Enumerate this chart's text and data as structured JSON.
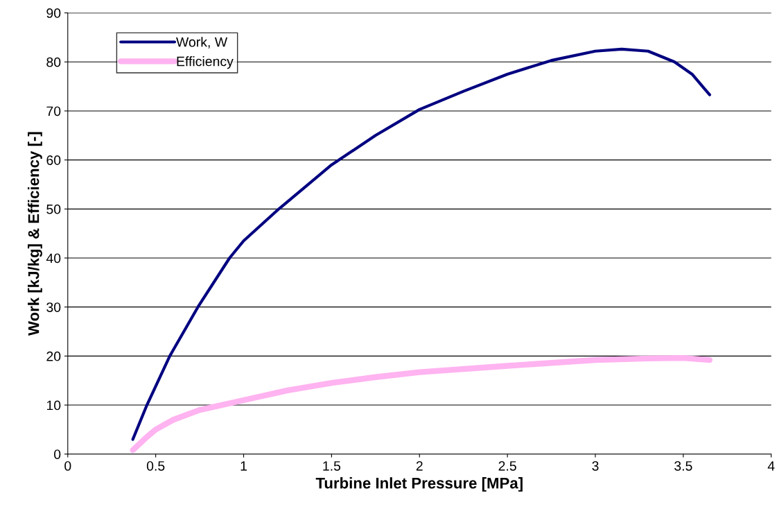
{
  "chart_data": {
    "type": "line",
    "xlabel": "Turbine Inlet Pressure [MPa]",
    "ylabel": "Work [kJ/kg] & Efficiency [-]",
    "xlim": [
      0,
      4
    ],
    "xticks": [
      0,
      0.5,
      1,
      1.5,
      2,
      2.5,
      3,
      3.5,
      4
    ],
    "ylim": [
      0,
      90
    ],
    "yticks": [
      0,
      10,
      20,
      30,
      40,
      50,
      60,
      70,
      80,
      90
    ],
    "grid": "y",
    "legend": "top left",
    "marker": "none",
    "line_style": "solid",
    "series": [
      {
        "name": "Work, W",
        "color": "#000080",
        "x": [
          0.37,
          0.45,
          0.58,
          0.74,
          0.92,
          1.0,
          1.2,
          1.5,
          1.75,
          2.0,
          2.25,
          2.5,
          2.75,
          3.0,
          3.15,
          3.3,
          3.45,
          3.55,
          3.65
        ],
        "values": [
          3,
          10,
          20,
          30,
          40,
          43.5,
          50,
          59,
          65,
          70.3,
          74,
          77.5,
          80.3,
          82.2,
          82.6,
          82.2,
          80,
          77.5,
          73.3
        ]
      },
      {
        "name": "Efficiency",
        "color": "#ffb3f0",
        "x": [
          0.37,
          0.45,
          0.5,
          0.6,
          0.75,
          1.0,
          1.25,
          1.5,
          1.75,
          2.0,
          2.5,
          3.0,
          3.3,
          3.5,
          3.65
        ],
        "values": [
          0.8,
          3.5,
          5,
          7,
          9,
          11,
          13,
          14.5,
          15.7,
          16.7,
          18,
          19.2,
          19.5,
          19.6,
          19.2
        ]
      }
    ]
  }
}
